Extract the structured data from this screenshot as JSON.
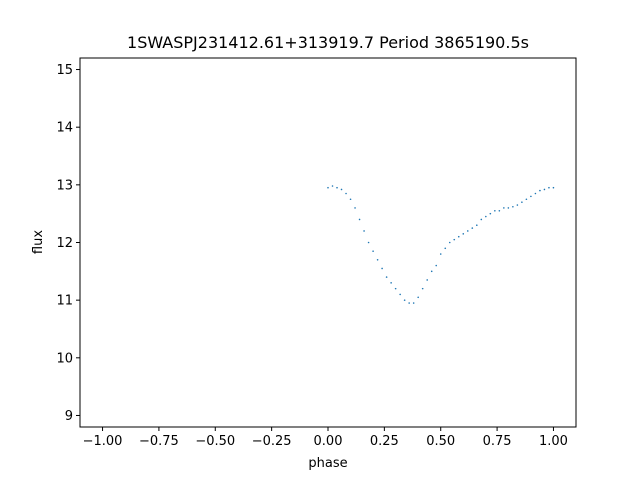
{
  "chart_data": {
    "type": "scatter",
    "title": "1SWASPJ231412.61+313919.7 Period 3865190.5s",
    "xlabel": "phase",
    "ylabel": "flux",
    "xlim": [
      -1.1,
      1.1
    ],
    "ylim": [
      8.8,
      15.2
    ],
    "xticks": [
      -1.0,
      -0.75,
      -0.5,
      -0.25,
      0.0,
      0.25,
      0.5,
      0.75,
      1.0
    ],
    "xtick_labels": [
      "−1.00",
      "−0.75",
      "−0.50",
      "−0.25",
      "0.00",
      "0.25",
      "0.50",
      "0.75",
      "1.00"
    ],
    "yticks": [
      9,
      10,
      11,
      12,
      13,
      14,
      15
    ],
    "ytick_labels": [
      "9",
      "10",
      "11",
      "12",
      "13",
      "14",
      "15"
    ],
    "grid": false,
    "legend": "none",
    "marker_color": "#1f77b4",
    "series": [
      {
        "points": [
          [
            0.0,
            12.95
          ],
          [
            0.02,
            12.98
          ],
          [
            0.04,
            12.95
          ],
          [
            0.06,
            12.92
          ],
          [
            0.08,
            12.85
          ],
          [
            0.1,
            12.75
          ],
          [
            0.12,
            12.6
          ],
          [
            0.14,
            12.4
          ],
          [
            0.16,
            12.2
          ],
          [
            0.18,
            12.0
          ],
          [
            0.2,
            11.85
          ],
          [
            0.22,
            11.7
          ],
          [
            0.24,
            11.55
          ],
          [
            0.26,
            11.4
          ],
          [
            0.28,
            11.3
          ],
          [
            0.3,
            11.2
          ],
          [
            0.32,
            11.1
          ],
          [
            0.34,
            11.0
          ],
          [
            0.36,
            10.95
          ],
          [
            0.38,
            10.95
          ],
          [
            0.4,
            11.05
          ],
          [
            0.42,
            11.2
          ],
          [
            0.44,
            11.35
          ],
          [
            0.46,
            11.5
          ],
          [
            0.48,
            11.6
          ],
          [
            0.5,
            11.8
          ],
          [
            0.52,
            11.9
          ],
          [
            0.54,
            12.0
          ],
          [
            0.56,
            12.05
          ],
          [
            0.58,
            12.1
          ],
          [
            0.6,
            12.15
          ],
          [
            0.62,
            12.2
          ],
          [
            0.64,
            12.25
          ],
          [
            0.66,
            12.3
          ],
          [
            0.68,
            12.4
          ],
          [
            0.7,
            12.45
          ],
          [
            0.72,
            12.5
          ],
          [
            0.74,
            12.55
          ],
          [
            0.76,
            12.55
          ],
          [
            0.78,
            12.6
          ],
          [
            0.8,
            12.6
          ],
          [
            0.82,
            12.62
          ],
          [
            0.84,
            12.65
          ],
          [
            0.86,
            12.7
          ],
          [
            0.88,
            12.75
          ],
          [
            0.9,
            12.8
          ],
          [
            0.92,
            12.85
          ],
          [
            0.94,
            12.9
          ],
          [
            0.96,
            12.92
          ],
          [
            0.98,
            12.95
          ],
          [
            1.0,
            12.95
          ]
        ]
      }
    ]
  }
}
